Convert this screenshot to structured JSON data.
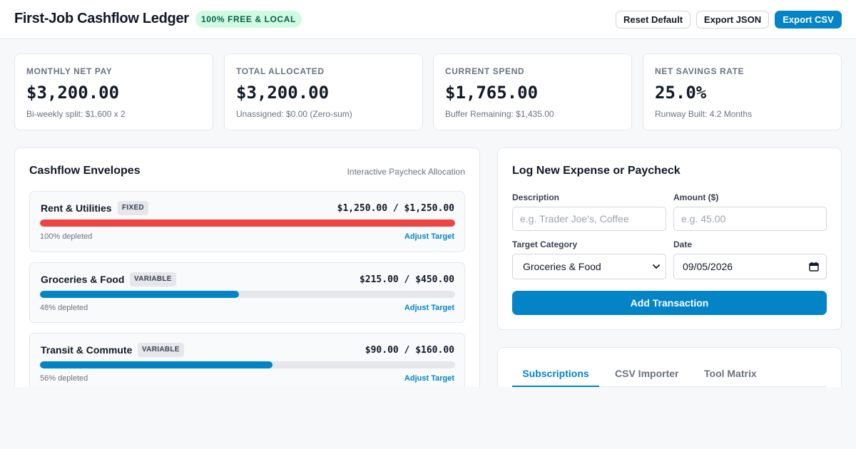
{
  "header": {
    "title": "First-Job Cashflow Ledger",
    "badge": "100% FREE & LOCAL",
    "buttons": {
      "reset": "Reset Default",
      "export_json": "Export JSON",
      "export_csv": "Export CSV"
    }
  },
  "stats": [
    {
      "label": "MONTHLY NET PAY",
      "value": "$3,200.00",
      "sub": "Bi-weekly split: $1,600 x 2"
    },
    {
      "label": "TOTAL ALLOCATED",
      "value": "$3,200.00",
      "sub": "Unassigned: $0.00 (Zero-sum)"
    },
    {
      "label": "CURRENT SPEND",
      "value": "$1,765.00",
      "sub": "Buffer Remaining: $1,435.00"
    },
    {
      "label": "NET SAVINGS RATE",
      "value": "25.0%",
      "sub": "Runway Built: 4.2 Months"
    }
  ],
  "envelopes": {
    "title": "Cashflow Envelopes",
    "hint": "Interactive Paycheck Allocation",
    "adjust_label": "Adjust Target",
    "items": [
      {
        "name": "Rent & Utilities",
        "tag": "FIXED",
        "amount": "$1,250.00 / $1,250.00",
        "status": "100% depleted",
        "fraction": 1.0,
        "color": "#ef4444"
      },
      {
        "name": "Groceries & Food",
        "tag": "VARIABLE",
        "amount": "$215.00 / $450.00",
        "status": "48% depleted",
        "fraction": 0.48,
        "color": "#0284c7"
      },
      {
        "name": "Transit & Commute",
        "tag": "VARIABLE",
        "amount": "$90.00 / $160.00",
        "status": "56% depleted",
        "fraction": 0.56,
        "color": "#0284c7"
      }
    ]
  },
  "log": {
    "title": "Log New Expense or Paycheck",
    "description_label": "Description",
    "description_placeholder": "e.g. Trader Joe's, Coffee",
    "amount_label": "Amount ($)",
    "amount_placeholder": "e.g. 45.00",
    "category_label": "Target Category",
    "category_value": "Groceries & Food",
    "date_label": "Date",
    "date_value": "09/05/2026",
    "submit_label": "Add Transaction"
  },
  "tabs": {
    "items": [
      "Subscriptions",
      "CSV Importer",
      "Tool Matrix"
    ],
    "active": 0
  }
}
